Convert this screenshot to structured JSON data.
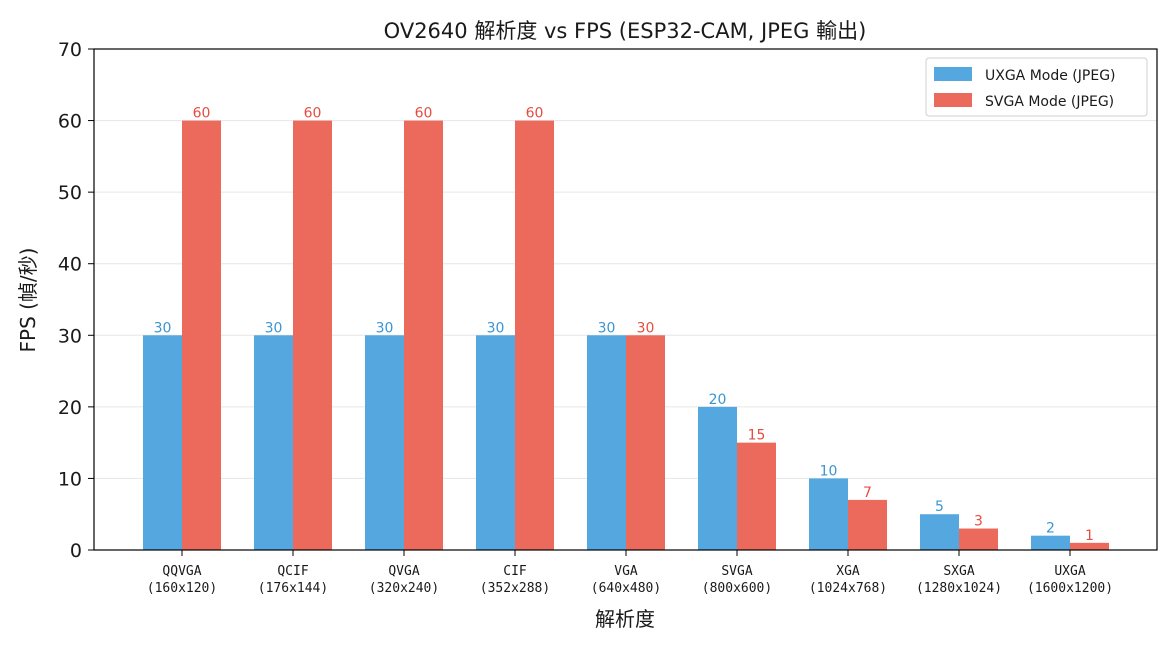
{
  "chart_data": {
    "type": "bar",
    "title": "OV2640 解析度 vs FPS (ESP32-CAM, JPEG 輸出)",
    "xlabel": "解析度",
    "ylabel": "FPS (幀/秒)",
    "ylim": [
      0,
      70
    ],
    "yticks": [
      0,
      10,
      20,
      30,
      40,
      50,
      60,
      70
    ],
    "grid": "y-axis",
    "legend_position": "top-right",
    "categories": [
      [
        "QQVGA",
        "(160x120)"
      ],
      [
        "QCIF",
        "(176x144)"
      ],
      [
        "QVGA",
        "(320x240)"
      ],
      [
        "CIF",
        "(352x288)"
      ],
      [
        "VGA",
        "(640x480)"
      ],
      [
        "SVGA",
        "(800x600)"
      ],
      [
        "XGA",
        "(1024x768)"
      ],
      [
        "SXGA",
        "(1280x1024)"
      ],
      [
        "UXGA",
        "(1600x1200)"
      ]
    ],
    "series": [
      {
        "name": "UXGA Mode (JPEG)",
        "color": "#55a7e0",
        "label_color": "#3c95d2",
        "values": [
          30,
          30,
          30,
          30,
          30,
          20,
          10,
          5,
          2
        ]
      },
      {
        "name": "SVGA Mode (JPEG)",
        "color": "#ec6a5c",
        "label_color": "#e54d3e",
        "values": [
          60,
          60,
          60,
          60,
          30,
          15,
          7,
          3,
          1
        ]
      }
    ]
  }
}
